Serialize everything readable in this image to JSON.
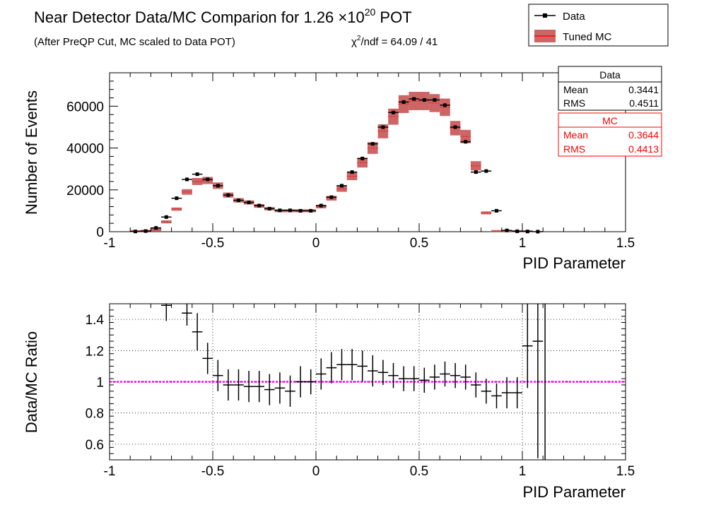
{
  "header": {
    "title_main": "Near Detector Data/MC Comparion for 1.26 ×10",
    "title_exp": "20",
    "title_tail": " POT",
    "subtitle": "(After PreQP Cut, MC scaled to Data POT)",
    "chi2_chi": "χ",
    "chi2_exp": "2",
    "chi2_rest": "/ndf = 64.09 / 41"
  },
  "legend": {
    "items": [
      {
        "label": "Data",
        "color": "#000000"
      },
      {
        "label": "Tuned MC",
        "color": "#cc0000"
      }
    ]
  },
  "stats": {
    "data": {
      "title": "Data",
      "mean_label": "Mean",
      "mean": "0.3441",
      "rms_label": "RMS",
      "rms": "0.4511",
      "color": "#000000"
    },
    "mc": {
      "title": "MC",
      "mean_label": "Mean",
      "mean": "0.3644",
      "rms_label": "RMS",
      "rms": "0.4413",
      "color": "#ff0000"
    }
  },
  "chart_data": [
    {
      "type": "bar",
      "xlabel": "PID Parameter",
      "ylabel": "Number of Events",
      "xlim": [
        -1,
        1.5
      ],
      "ylim": [
        0,
        76000
      ],
      "x_ticks": [
        "-1",
        "-0.5",
        "0",
        "0.5",
        "1",
        "1.5"
      ],
      "y_ticks": [
        "0",
        "20000",
        "40000",
        "60000"
      ],
      "bin_width": 0.05,
      "mc_color": "#cc6666",
      "series": [
        {
          "name": "Data",
          "x": [
            -0.875,
            -0.825,
            -0.775,
            -0.725,
            -0.675,
            -0.625,
            -0.575,
            -0.525,
            -0.475,
            -0.425,
            -0.375,
            -0.325,
            -0.275,
            -0.225,
            -0.175,
            -0.125,
            -0.075,
            -0.025,
            0.025,
            0.075,
            0.125,
            0.175,
            0.225,
            0.275,
            0.325,
            0.375,
            0.425,
            0.475,
            0.525,
            0.575,
            0.625,
            0.675,
            0.725,
            0.775,
            0.825,
            0.875,
            0.925,
            0.975,
            1.025,
            1.075,
            1.125
          ],
          "values": [
            100,
            300,
            1800,
            7000,
            16000,
            25000,
            27500,
            25000,
            22000,
            17500,
            15000,
            14000,
            12500,
            11000,
            10200,
            10200,
            10000,
            10000,
            12500,
            16500,
            22000,
            28500,
            35000,
            42000,
            50000,
            57000,
            62000,
            63500,
            63000,
            63000,
            60500,
            50000,
            43000,
            28500,
            29000,
            10000,
            600,
            200,
            100,
            20,
            0
          ]
        },
        {
          "name": "Tuned MC",
          "x": [
            -0.875,
            -0.825,
            -0.775,
            -0.725,
            -0.675,
            -0.625,
            -0.575,
            -0.525,
            -0.475,
            -0.425,
            -0.375,
            -0.325,
            -0.275,
            -0.225,
            -0.175,
            -0.125,
            -0.075,
            -0.025,
            0.025,
            0.075,
            0.125,
            0.175,
            0.225,
            0.275,
            0.325,
            0.375,
            0.425,
            0.475,
            0.525,
            0.575,
            0.625,
            0.675,
            0.725,
            0.775,
            0.825,
            0.875,
            0.925,
            0.975,
            1.025,
            1.075,
            1.125
          ],
          "values": [
            50,
            200,
            1000,
            4700,
            10800,
            19000,
            24000,
            24500,
            22000,
            17500,
            15000,
            14000,
            12300,
            11000,
            10000,
            10000,
            10000,
            10000,
            12000,
            16000,
            20500,
            26500,
            33000,
            40000,
            48000,
            55000,
            61000,
            62500,
            62500,
            61500,
            59500,
            49500,
            45500,
            31500,
            9000,
            100,
            30,
            10,
            5,
            0,
            0
          ],
          "band_frac": 0.07
        }
      ]
    },
    {
      "type": "scatter",
      "xlabel": "PID Parameter",
      "ylabel": "Data/MC Ratio",
      "xlim": [
        -1,
        1.5
      ],
      "ylim": [
        0.5,
        1.5
      ],
      "x_ticks": [
        "-1",
        "-0.5",
        "0",
        "0.5",
        "1",
        "1.5"
      ],
      "y_ticks": [
        "0.6",
        "0.8",
        "1",
        "1.2",
        "1.4"
      ],
      "reference_line": 1,
      "reference_color": "#ff00ff",
      "grid": true,
      "series": [
        {
          "name": "Data/MC",
          "x": [
            -0.725,
            -0.625,
            -0.575,
            -0.525,
            -0.475,
            -0.425,
            -0.375,
            -0.325,
            -0.275,
            -0.225,
            -0.175,
            -0.125,
            -0.075,
            -0.025,
            0.025,
            0.075,
            0.125,
            0.175,
            0.225,
            0.275,
            0.325,
            0.375,
            0.425,
            0.475,
            0.525,
            0.575,
            0.625,
            0.675,
            0.725,
            0.775,
            0.825,
            0.875,
            0.925,
            0.975,
            1.025,
            1.075,
            1.125
          ],
          "values": [
            1.49,
            1.44,
            1.32,
            1.15,
            1.04,
            0.98,
            0.98,
            0.97,
            0.97,
            0.95,
            0.96,
            0.94,
            1.0,
            1.0,
            1.05,
            1.09,
            1.11,
            1.11,
            1.1,
            1.07,
            1.06,
            1.04,
            1.02,
            1.02,
            1.01,
            1.03,
            1.05,
            1.04,
            1.03,
            0.98,
            0.94,
            0.91,
            0.93,
            0.93,
            1.23,
            1.26,
            null
          ],
          "errors": [
            0.1,
            0.08,
            0.12,
            0.1,
            0.1,
            0.1,
            0.1,
            0.1,
            0.1,
            0.1,
            0.1,
            0.1,
            0.1,
            0.08,
            0.1,
            0.1,
            0.1,
            0.1,
            0.1,
            0.1,
            0.08,
            0.08,
            0.08,
            0.08,
            0.08,
            0.08,
            0.08,
            0.08,
            0.08,
            0.08,
            0.08,
            0.08,
            0.1,
            0.1,
            0.27,
            0.75,
            0
          ],
          "x_half_width": 0.025
        }
      ]
    }
  ]
}
